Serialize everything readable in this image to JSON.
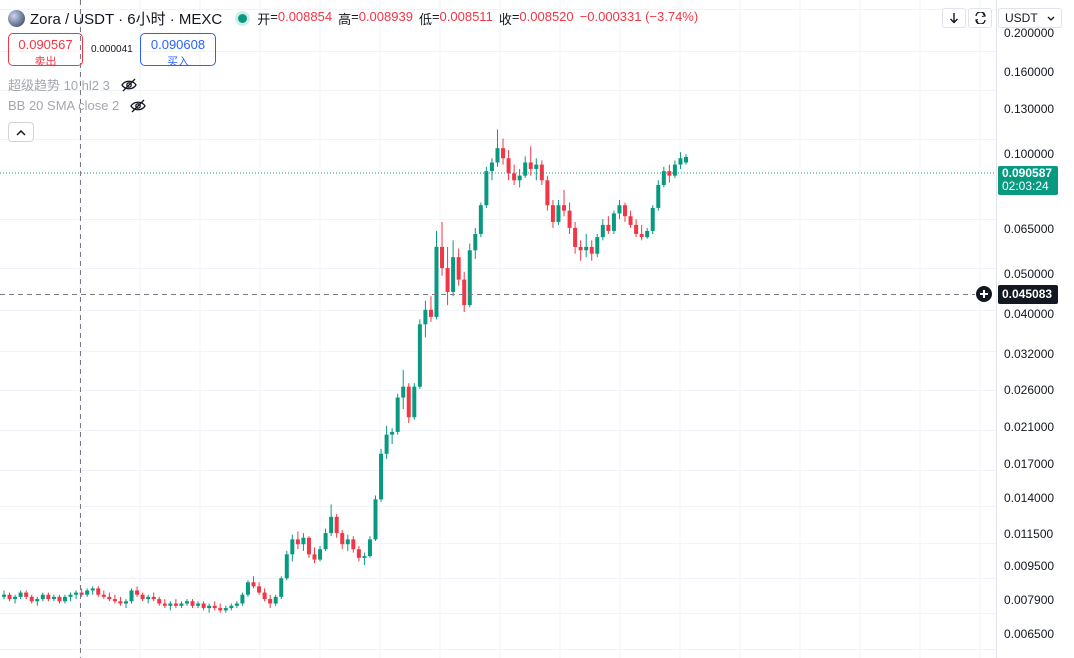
{
  "header": {
    "symbol": "Zora / USDT · 6小时 · MEXC",
    "ohlc": [
      {
        "key": "开",
        "value": "0.008854"
      },
      {
        "key": "高",
        "value": "0.008939"
      },
      {
        "key": "低",
        "value": "0.008511"
      },
      {
        "key": "收",
        "value": "0.008520"
      }
    ],
    "change": "−0.000331 (−3.74%)",
    "currency": "USDT"
  },
  "trade": {
    "sell_price": "0.090567",
    "sell_label": "卖出",
    "spread": "0.000041",
    "buy_price": "0.090608",
    "buy_label": "买入"
  },
  "indicators": [
    {
      "label": "超级趋势 10 hl2 3"
    },
    {
      "label": "BB 20 SMA close 2"
    }
  ],
  "price_axis": {
    "ticks": [
      "0.200000",
      "0.160000",
      "0.130000",
      "0.100000",
      "0.065000",
      "0.050000",
      "0.040000",
      "0.032000",
      "0.026000",
      "0.021000",
      "0.017000",
      "0.014000",
      "0.011500",
      "0.009500",
      "0.007900",
      "0.006500"
    ],
    "last_price": "0.090587",
    "countdown": "02:03:24",
    "crosshair_price": "0.045083"
  },
  "colors": {
    "up": "#089981",
    "down": "#f23645",
    "accent": "#2962ff"
  },
  "chart_data": {
    "type": "candlestick",
    "scale": "log",
    "ylim": [
      0.0062,
      0.21
    ],
    "candles": [
      [
        0.0086,
        0.0089,
        0.0085,
        0.0087
      ],
      [
        0.0087,
        0.0088,
        0.0084,
        0.0085
      ],
      [
        0.0085,
        0.0087,
        0.0083,
        0.0086
      ],
      [
        0.0086,
        0.0089,
        0.0085,
        0.0088
      ],
      [
        0.0088,
        0.0089,
        0.0085,
        0.0086
      ],
      [
        0.0086,
        0.0087,
        0.0083,
        0.0084
      ],
      [
        0.0084,
        0.0086,
        0.0082,
        0.0085
      ],
      [
        0.0085,
        0.0088,
        0.0084,
        0.0087
      ],
      [
        0.0087,
        0.0088,
        0.0084,
        0.0085
      ],
      [
        0.0085,
        0.0087,
        0.0084,
        0.0086
      ],
      [
        0.0086,
        0.0087,
        0.0083,
        0.0084
      ],
      [
        0.0084,
        0.0087,
        0.0083,
        0.0086
      ],
      [
        0.0086,
        0.0088,
        0.0084,
        0.0087
      ],
      [
        0.0087,
        0.0089,
        0.0085,
        0.0088
      ],
      [
        0.0088,
        0.009,
        0.0086,
        0.0087
      ],
      [
        0.0087,
        0.009,
        0.0086,
        0.0089
      ],
      [
        0.0089,
        0.0091,
        0.0087,
        0.009
      ],
      [
        0.009,
        0.0091,
        0.0086,
        0.0087
      ],
      [
        0.0087,
        0.0089,
        0.0085,
        0.0086
      ],
      [
        0.0086,
        0.0088,
        0.0084,
        0.0085
      ],
      [
        0.0085,
        0.0087,
        0.0083,
        0.0084
      ],
      [
        0.0084,
        0.0086,
        0.0082,
        0.0083
      ],
      [
        0.0083,
        0.0085,
        0.0081,
        0.0084
      ],
      [
        0.0084,
        0.009,
        0.0083,
        0.0089
      ],
      [
        0.0089,
        0.0091,
        0.0086,
        0.0087
      ],
      [
        0.0087,
        0.0088,
        0.0084,
        0.0085
      ],
      [
        0.0085,
        0.0087,
        0.0083,
        0.0086
      ],
      [
        0.0086,
        0.0088,
        0.0084,
        0.0085
      ],
      [
        0.0085,
        0.0086,
        0.0082,
        0.0083
      ],
      [
        0.0083,
        0.0085,
        0.0081,
        0.0082
      ],
      [
        0.0082,
        0.0084,
        0.008,
        0.0083
      ],
      [
        0.0083,
        0.0085,
        0.0081,
        0.0082
      ],
      [
        0.0082,
        0.0084,
        0.0081,
        0.0083
      ],
      [
        0.0083,
        0.0085,
        0.0082,
        0.0084
      ],
      [
        0.0084,
        0.0085,
        0.0081,
        0.0082
      ],
      [
        0.0082,
        0.0084,
        0.0081,
        0.0083
      ],
      [
        0.0083,
        0.0084,
        0.008,
        0.0081
      ],
      [
        0.0081,
        0.0083,
        0.0079,
        0.0082
      ],
      [
        0.0082,
        0.0084,
        0.008,
        0.0081
      ],
      [
        0.0081,
        0.0083,
        0.0079,
        0.008
      ],
      [
        0.008,
        0.0082,
        0.0079,
        0.0081
      ],
      [
        0.0081,
        0.0083,
        0.008,
        0.0082
      ],
      [
        0.0082,
        0.0084,
        0.0081,
        0.0083
      ],
      [
        0.0083,
        0.0088,
        0.0082,
        0.0087
      ],
      [
        0.0087,
        0.0094,
        0.0086,
        0.0093
      ],
      [
        0.0093,
        0.0096,
        0.009,
        0.0091
      ],
      [
        0.0091,
        0.0093,
        0.0087,
        0.0088
      ],
      [
        0.0088,
        0.009,
        0.0084,
        0.0085
      ],
      [
        0.0085,
        0.0087,
        0.0081,
        0.0083
      ],
      [
        0.0083,
        0.0087,
        0.0082,
        0.0086
      ],
      [
        0.0086,
        0.0096,
        0.0085,
        0.0095
      ],
      [
        0.0095,
        0.011,
        0.0094,
        0.0108
      ],
      [
        0.0108,
        0.012,
        0.0104,
        0.0117
      ],
      [
        0.0117,
        0.0122,
        0.0111,
        0.0114
      ],
      [
        0.0114,
        0.0121,
        0.011,
        0.0118
      ],
      [
        0.0118,
        0.0119,
        0.0106,
        0.0108
      ],
      [
        0.0108,
        0.0112,
        0.0103,
        0.0105
      ],
      [
        0.0105,
        0.0113,
        0.0104,
        0.0111
      ],
      [
        0.0111,
        0.0124,
        0.011,
        0.0121
      ],
      [
        0.0121,
        0.0141,
        0.0119,
        0.0132
      ],
      [
        0.0132,
        0.0134,
        0.0118,
        0.0121
      ],
      [
        0.0121,
        0.0123,
        0.0111,
        0.0114
      ],
      [
        0.0114,
        0.012,
        0.011,
        0.0117
      ],
      [
        0.0117,
        0.0119,
        0.0109,
        0.0111
      ],
      [
        0.0111,
        0.0113,
        0.0104,
        0.0106
      ],
      [
        0.0106,
        0.0109,
        0.0102,
        0.0107
      ],
      [
        0.0107,
        0.0119,
        0.0106,
        0.0117
      ],
      [
        0.0117,
        0.0148,
        0.0116,
        0.0145
      ],
      [
        0.0145,
        0.019,
        0.0143,
        0.0185
      ],
      [
        0.0185,
        0.0215,
        0.018,
        0.0205
      ],
      [
        0.0205,
        0.0212,
        0.0195,
        0.0208
      ],
      [
        0.0208,
        0.0255,
        0.0205,
        0.025
      ],
      [
        0.025,
        0.029,
        0.0235,
        0.0265
      ],
      [
        0.0265,
        0.027,
        0.0218,
        0.0225
      ],
      [
        0.0225,
        0.027,
        0.0222,
        0.0265
      ],
      [
        0.0265,
        0.038,
        0.0262,
        0.037
      ],
      [
        0.037,
        0.042,
        0.0345,
        0.04
      ],
      [
        0.04,
        0.043,
        0.0375,
        0.0385
      ],
      [
        0.0385,
        0.061,
        0.038,
        0.056
      ],
      [
        0.056,
        0.064,
        0.048,
        0.05
      ],
      [
        0.05,
        0.056,
        0.041,
        0.044
      ],
      [
        0.044,
        0.058,
        0.043,
        0.053
      ],
      [
        0.053,
        0.0555,
        0.0455,
        0.047
      ],
      [
        0.047,
        0.049,
        0.0395,
        0.041
      ],
      [
        0.041,
        0.057,
        0.0405,
        0.055
      ],
      [
        0.055,
        0.062,
        0.0525,
        0.06
      ],
      [
        0.06,
        0.071,
        0.059,
        0.07
      ],
      [
        0.07,
        0.086,
        0.069,
        0.084
      ],
      [
        0.084,
        0.09,
        0.08,
        0.088
      ],
      [
        0.088,
        0.105,
        0.086,
        0.095
      ],
      [
        0.095,
        0.1,
        0.087,
        0.09
      ],
      [
        0.09,
        0.094,
        0.08,
        0.083
      ],
      [
        0.083,
        0.087,
        0.078,
        0.08
      ],
      [
        0.08,
        0.085,
        0.077,
        0.082
      ],
      [
        0.082,
        0.091,
        0.081,
        0.088
      ],
      [
        0.088,
        0.096,
        0.082,
        0.085
      ],
      [
        0.085,
        0.09,
        0.08,
        0.087
      ],
      [
        0.087,
        0.089,
        0.078,
        0.08
      ],
      [
        0.08,
        0.082,
        0.068,
        0.07
      ],
      [
        0.07,
        0.072,
        0.062,
        0.064
      ],
      [
        0.064,
        0.072,
        0.063,
        0.07
      ],
      [
        0.07,
        0.076,
        0.066,
        0.068
      ],
      [
        0.068,
        0.071,
        0.06,
        0.062
      ],
      [
        0.062,
        0.064,
        0.054,
        0.056
      ],
      [
        0.056,
        0.058,
        0.052,
        0.055
      ],
      [
        0.055,
        0.06,
        0.053,
        0.056
      ],
      [
        0.056,
        0.058,
        0.052,
        0.054
      ],
      [
        0.054,
        0.06,
        0.053,
        0.059
      ],
      [
        0.059,
        0.065,
        0.058,
        0.063
      ],
      [
        0.063,
        0.066,
        0.06,
        0.061
      ],
      [
        0.061,
        0.068,
        0.06,
        0.067
      ],
      [
        0.067,
        0.072,
        0.065,
        0.07
      ],
      [
        0.07,
        0.071,
        0.064,
        0.066
      ],
      [
        0.066,
        0.068,
        0.062,
        0.063
      ],
      [
        0.063,
        0.065,
        0.059,
        0.06
      ],
      [
        0.06,
        0.063,
        0.058,
        0.059
      ],
      [
        0.059,
        0.062,
        0.0585,
        0.061
      ],
      [
        0.061,
        0.07,
        0.06,
        0.069
      ],
      [
        0.069,
        0.08,
        0.068,
        0.078
      ],
      [
        0.078,
        0.086,
        0.077,
        0.084
      ],
      [
        0.084,
        0.087,
        0.079,
        0.082
      ],
      [
        0.082,
        0.089,
        0.081,
        0.087
      ],
      [
        0.087,
        0.093,
        0.085,
        0.09
      ],
      [
        0.088,
        0.092,
        0.087,
        0.0906
      ]
    ]
  }
}
